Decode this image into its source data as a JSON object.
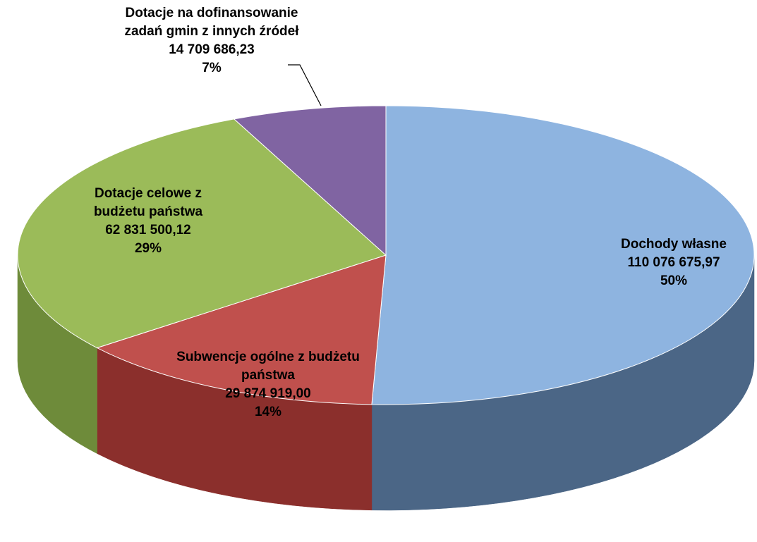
{
  "chart_data": {
    "type": "pie3d",
    "categories": [
      "Dochody własne",
      "Subwencje ogólne z budżetu państwa",
      "Dotacje celowe z budżetu państwa",
      "Dotacje na dofinansowanie zadań gmin z innych źródeł"
    ],
    "values": [
      110076675.97,
      29874919.0,
      62831500.12,
      14709686.23
    ],
    "value_labels": [
      "110 076 675,97",
      "29 874 919,00",
      "62 831 500,12",
      "14 709 686,23"
    ],
    "percents": [
      50,
      14,
      29,
      7
    ],
    "percent_labels": [
      "50%",
      "14%",
      "29%",
      "7%"
    ],
    "colors": [
      "#8eb4e0",
      "#c0504d",
      "#9bbb59",
      "#8064a2"
    ],
    "side_colors": [
      "#4b6686",
      "#8b2f2c",
      "#6e8b3a",
      "#5a4479"
    ]
  }
}
